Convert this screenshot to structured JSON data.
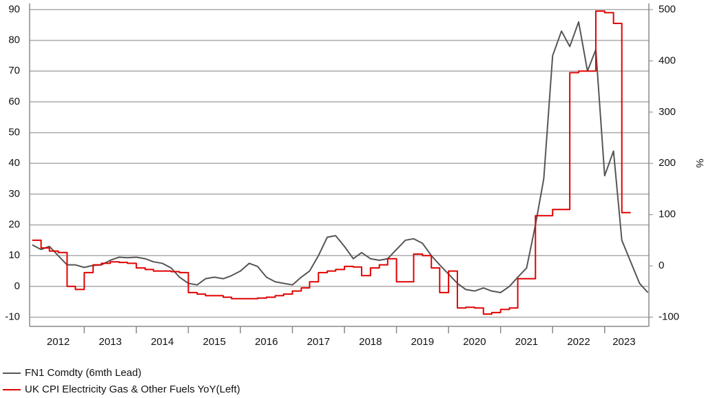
{
  "chart_data": {
    "type": "line",
    "x": [
      2012,
      2012.17,
      2012.33,
      2012.5,
      2012.67,
      2012.83,
      2013,
      2013.17,
      2013.33,
      2013.5,
      2013.67,
      2013.83,
      2014,
      2014.17,
      2014.33,
      2014.5,
      2014.67,
      2014.83,
      2015,
      2015.17,
      2015.33,
      2015.5,
      2015.67,
      2015.83,
      2016,
      2016.17,
      2016.33,
      2016.5,
      2016.67,
      2016.83,
      2017,
      2017.17,
      2017.33,
      2017.5,
      2017.67,
      2017.83,
      2018,
      2018.17,
      2018.33,
      2018.5,
      2018.67,
      2018.83,
      2019,
      2019.17,
      2019.33,
      2019.5,
      2019.67,
      2019.83,
      2020,
      2020.17,
      2020.33,
      2020.5,
      2020.67,
      2020.83,
      2021,
      2021.17,
      2021.33,
      2021.5,
      2021.67,
      2021.83,
      2022,
      2022.17,
      2022.33,
      2022.5,
      2022.67,
      2022.83,
      2023,
      2023.17,
      2023.33,
      2023.5,
      2023.67,
      2023.83
    ],
    "series": [
      {
        "name": "FN1 Comdty (6mth Lead)",
        "color": "#555555",
        "axis": "y2",
        "values": [
          41,
          32,
          38,
          20,
          2,
          2,
          -3,
          1,
          2,
          11,
          17,
          16,
          17,
          14,
          8,
          5,
          -4,
          -22,
          -34,
          -37,
          -25,
          -22,
          -25,
          -19,
          -10,
          5,
          -1,
          -22,
          -31,
          -34,
          -37,
          -22,
          -10,
          20,
          56,
          59,
          38,
          14,
          26,
          14,
          11,
          14,
          32,
          50,
          53,
          44,
          20,
          2,
          -16,
          -34,
          -46,
          -49,
          -43,
          -49,
          -52,
          -40,
          -22,
          -4,
          80,
          170,
          410,
          458,
          428,
          476,
          380,
          422,
          176,
          224,
          50,
          8,
          -34,
          -52
        ]
      },
      {
        "name": "UK CPI Electricity Gas & Other Fuels YoY(Left)",
        "color": "#e00000",
        "step": true,
        "values": [
          15,
          12.5,
          11.5,
          11,
          0,
          -1,
          4.5,
          7,
          7.5,
          8,
          7.8,
          7.5,
          6,
          5.5,
          5,
          5,
          4.8,
          4.5,
          -2,
          -2.5,
          -3,
          -3,
          -3.5,
          -4,
          -4,
          -4,
          -3.8,
          -3.5,
          -3,
          -2.5,
          -1.5,
          -0.5,
          1.5,
          4.5,
          5,
          5.5,
          6.5,
          6.3,
          3.5,
          6,
          7,
          9,
          1.5,
          1.5,
          10.5,
          10,
          6,
          -2,
          5,
          -7,
          -6.8,
          -7,
          -9,
          -8.5,
          -7.5,
          -7,
          2.5,
          2.5,
          23,
          23,
          25,
          25,
          69.5,
          70,
          70,
          89.5,
          89,
          85.5,
          24,
          null,
          null,
          null
        ]
      }
    ],
    "xlim": [
      2011.95,
      2023.85
    ],
    "xticks": [
      2012,
      2013,
      2014,
      2015,
      2016,
      2017,
      2018,
      2019,
      2020,
      2021,
      2022,
      2023
    ],
    "ylim": [
      -13,
      92
    ],
    "yticks": [
      -10,
      0,
      10,
      20,
      30,
      40,
      50,
      60,
      70,
      80,
      90
    ],
    "y2lim": [
      -118,
      512
    ],
    "y2ticks": [
      -100,
      0,
      100,
      200,
      300,
      400,
      500
    ],
    "y2label": "%",
    "grid": true,
    "legend": "bottom-left"
  }
}
